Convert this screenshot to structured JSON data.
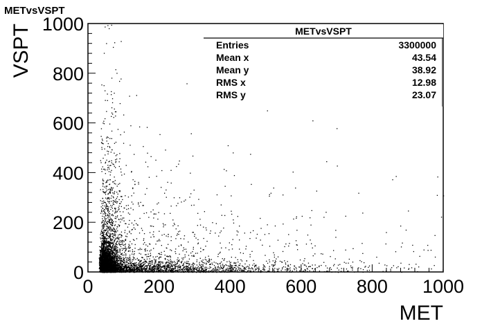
{
  "chart_data": {
    "type": "scatter",
    "title": "METvsVSPT",
    "xlabel": "MET",
    "ylabel": "VSPT",
    "xlim": [
      0,
      1000
    ],
    "ylim": [
      0,
      1000
    ],
    "x_ticks": [
      0,
      200,
      400,
      600,
      800,
      1000
    ],
    "y_ticks": [
      0,
      200,
      400,
      600,
      800,
      1000
    ],
    "x_tick_labels": [
      "0",
      "200",
      "400",
      "600",
      "800",
      "1000"
    ],
    "y_tick_labels": [
      "0",
      "200",
      "400",
      "600",
      "800",
      "1000"
    ],
    "grid": false,
    "stats_box": {
      "placement": "top-right",
      "title": "METvsVSPT",
      "rows": [
        {
          "label": "Entries",
          "value": "3300000"
        },
        {
          "label": "Mean x",
          "value": "43.54"
        },
        {
          "label": "Mean y",
          "value": "38.92"
        },
        {
          "label": "RMS x",
          "value": "12.98"
        },
        {
          "label": "RMS y",
          "value": "23.07"
        }
      ]
    },
    "marker_color": "#000000"
  }
}
